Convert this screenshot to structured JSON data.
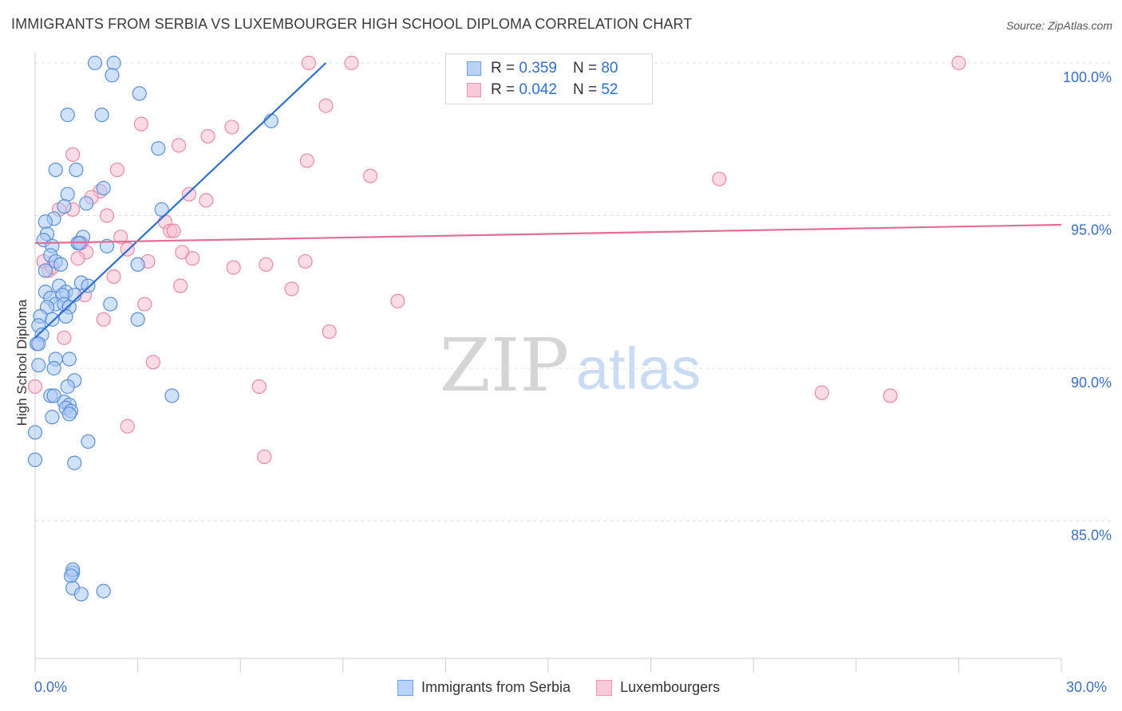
{
  "title": "IMMIGRANTS FROM SERBIA VS LUXEMBOURGER HIGH SCHOOL DIPLOMA CORRELATION CHART",
  "source": "Source: ZipAtlas.com",
  "watermark": {
    "zip": "ZIP",
    "atlas": "atlas"
  },
  "legend_top": {
    "rows": [
      {
        "r_label": "R =",
        "r_value": "0.359",
        "n_label": "N =",
        "n_value": "80"
      },
      {
        "r_label": "R =",
        "r_value": "0.042",
        "n_label": "N =",
        "n_value": "52"
      }
    ]
  },
  "bottom_legend": [
    "Immigrants from Serbia",
    "Luxembourgers"
  ],
  "x_tick_labels": {
    "left": "0.0%",
    "right": "30.0%"
  },
  "colors": {
    "blue_fill": "#a9c8f5",
    "blue_stroke": "#5a8fd8",
    "blue_line": "#2f6fd0",
    "pink_fill": "#f7c0d2",
    "pink_stroke": "#e889a8",
    "pink_line": "#e36d95",
    "grid": "#e2e2e2",
    "tick_text": "#3c6fc0"
  },
  "chart_data": {
    "type": "scatter",
    "title": "IMMIGRANTS FROM SERBIA VS LUXEMBOURGER HIGH SCHOOL DIPLOMA CORRELATION CHART",
    "xlabel": "",
    "ylabel": "High School Diploma",
    "xlim": [
      0,
      30
    ],
    "ylim": [
      80.5,
      100.8
    ],
    "y_ticks": [
      85,
      90,
      95,
      100
    ],
    "y_tick_labels": [
      "85.0%",
      "90.0%",
      "95.0%",
      "100.0%"
    ],
    "series": [
      {
        "name": "Immigrants from Serbia",
        "color": "blue",
        "r": 0.359,
        "n": 80,
        "trend": {
          "x": [
            0,
            8.5
          ],
          "y": [
            91.0,
            100.0
          ]
        },
        "points": [
          [
            1.75,
            100.0
          ],
          [
            2.3,
            100.0
          ],
          [
            2.25,
            99.6
          ],
          [
            3.05,
            99.0
          ],
          [
            0.95,
            98.3
          ],
          [
            1.95,
            98.3
          ],
          [
            6.9,
            98.1
          ],
          [
            3.6,
            97.2
          ],
          [
            0.6,
            96.5
          ],
          [
            1.2,
            96.5
          ],
          [
            2.0,
            95.9
          ],
          [
            0.95,
            95.7
          ],
          [
            1.5,
            95.4
          ],
          [
            0.85,
            95.3
          ],
          [
            3.7,
            95.2
          ],
          [
            0.55,
            94.9
          ],
          [
            0.3,
            94.8
          ],
          [
            0.35,
            94.4
          ],
          [
            1.4,
            94.3
          ],
          [
            0.25,
            94.2
          ],
          [
            1.25,
            94.1
          ],
          [
            0.5,
            94.0
          ],
          [
            2.1,
            94.0
          ],
          [
            1.3,
            94.1
          ],
          [
            0.45,
            93.7
          ],
          [
            0.6,
            93.5
          ],
          [
            0.75,
            93.4
          ],
          [
            3.0,
            93.4
          ],
          [
            0.3,
            93.2
          ],
          [
            1.35,
            92.8
          ],
          [
            0.7,
            92.7
          ],
          [
            1.55,
            92.7
          ],
          [
            0.3,
            92.5
          ],
          [
            0.9,
            92.5
          ],
          [
            1.15,
            92.4
          ],
          [
            0.45,
            92.3
          ],
          [
            0.8,
            92.4
          ],
          [
            0.6,
            92.1
          ],
          [
            0.35,
            92.0
          ],
          [
            0.85,
            92.1
          ],
          [
            1.0,
            92.0
          ],
          [
            2.2,
            92.1
          ],
          [
            0.15,
            91.7
          ],
          [
            0.5,
            91.6
          ],
          [
            0.9,
            91.7
          ],
          [
            3.0,
            91.6
          ],
          [
            0.1,
            91.4
          ],
          [
            0.2,
            91.1
          ],
          [
            0.05,
            90.8
          ],
          [
            0.1,
            90.8
          ],
          [
            0.6,
            90.3
          ],
          [
            1.0,
            90.3
          ],
          [
            0.1,
            90.1
          ],
          [
            0.55,
            90.0
          ],
          [
            1.15,
            89.6
          ],
          [
            0.95,
            89.4
          ],
          [
            0.45,
            89.1
          ],
          [
            0.55,
            89.1
          ],
          [
            4.0,
            89.1
          ],
          [
            0.85,
            88.9
          ],
          [
            1.0,
            88.8
          ],
          [
            0.9,
            88.7
          ],
          [
            1.05,
            88.6
          ],
          [
            1.0,
            88.5
          ],
          [
            0.5,
            88.4
          ],
          [
            0.0,
            87.9
          ],
          [
            1.55,
            87.6
          ],
          [
            0.0,
            87.0
          ],
          [
            1.15,
            86.9
          ],
          [
            1.1,
            83.3
          ],
          [
            1.1,
            83.4
          ],
          [
            1.05,
            83.2
          ],
          [
            1.1,
            82.8
          ],
          [
            2.0,
            82.7
          ],
          [
            1.35,
            82.6
          ]
        ]
      },
      {
        "name": "Luxembourgers",
        "color": "pink",
        "r": 0.042,
        "n": 52,
        "trend": {
          "x": [
            0,
            30
          ],
          "y": [
            94.1,
            94.7
          ]
        },
        "points": [
          [
            8.0,
            100.0
          ],
          [
            9.25,
            100.0
          ],
          [
            27.0,
            100.0
          ],
          [
            8.5,
            98.6
          ],
          [
            3.1,
            98.0
          ],
          [
            5.75,
            97.9
          ],
          [
            4.2,
            97.3
          ],
          [
            5.05,
            97.6
          ],
          [
            1.1,
            97.0
          ],
          [
            7.95,
            96.8
          ],
          [
            2.4,
            96.5
          ],
          [
            9.8,
            96.3
          ],
          [
            20.0,
            96.2
          ],
          [
            4.5,
            95.7
          ],
          [
            5.0,
            95.5
          ],
          [
            1.9,
            95.8
          ],
          [
            1.65,
            95.6
          ],
          [
            0.7,
            95.2
          ],
          [
            1.1,
            95.2
          ],
          [
            2.1,
            95.0
          ],
          [
            3.8,
            94.8
          ],
          [
            2.5,
            94.3
          ],
          [
            3.95,
            94.5
          ],
          [
            4.05,
            94.5
          ],
          [
            1.35,
            94.1
          ],
          [
            2.7,
            93.9
          ],
          [
            1.5,
            93.8
          ],
          [
            4.3,
            93.8
          ],
          [
            1.25,
            93.6
          ],
          [
            4.6,
            93.6
          ],
          [
            7.9,
            93.5
          ],
          [
            0.25,
            93.5
          ],
          [
            6.75,
            93.4
          ],
          [
            5.8,
            93.3
          ],
          [
            3.3,
            93.5
          ],
          [
            0.4,
            93.2
          ],
          [
            0.5,
            93.3
          ],
          [
            2.3,
            93.0
          ],
          [
            4.25,
            92.7
          ],
          [
            7.5,
            92.6
          ],
          [
            1.45,
            92.4
          ],
          [
            10.6,
            92.2
          ],
          [
            3.2,
            92.1
          ],
          [
            2.0,
            91.6
          ],
          [
            8.6,
            91.2
          ],
          [
            0.85,
            91.0
          ],
          [
            3.45,
            90.2
          ],
          [
            6.55,
            89.4
          ],
          [
            0.0,
            89.4
          ],
          [
            23.0,
            89.2
          ],
          [
            25.0,
            89.1
          ],
          [
            2.7,
            88.1
          ],
          [
            6.7,
            87.1
          ]
        ]
      }
    ]
  }
}
